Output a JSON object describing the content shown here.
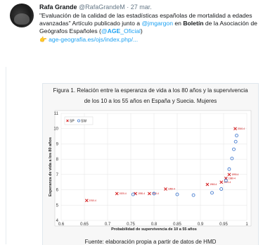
{
  "tweet": {
    "author_name": "Rafa Grande",
    "author_handle": "@RafaGrandeM",
    "separator": " · ",
    "time": "27 mar.",
    "text_line1": "\"Evaluación de la calidad de las estadísticas españolas de mortalidad a edades",
    "text_line2_a": "avanzadas\" Artículo publicado junto a ",
    "mention1": "@jmgargon",
    "text_line2_b": " en ",
    "text_line2_bold": "Boletín",
    "text_line2_c": " de la Asociación de",
    "text_line3_a": "Geógrafos Españoles (",
    "mention2_at": "@",
    "mention2_bold": "AGE",
    "mention2_rest": "_Oficial",
    "text_line3_b": ")",
    "pointer_emoji": "👉",
    "url": "age-geografia.es/ojs/index.php/..."
  },
  "figure": {
    "caption_line1": "Figura 1. Relación entre la esperanza de vida a los 80 años y la supervivencia",
    "caption_line2": "de los 10 a los 55 años en España y Suecia. Mujeres",
    "source": "Fuente: elaboración propia a partir de datos de HMD"
  },
  "chart_data": {
    "type": "scatter",
    "xlabel": "Probabilidad de supervivencia de 10 a 55 años",
    "ylabel": "Esperanza de vida a los 80 años",
    "xlim": [
      0.6,
      1.0
    ],
    "ylim": [
      4,
      11
    ],
    "x_ticks": [
      "0.6",
      "0.65",
      "0.7",
      "0.75",
      "0.8",
      "0.85",
      "0.9",
      "0.95",
      "1"
    ],
    "y_ticks": [
      "4",
      "5",
      "6",
      "7",
      "8",
      "9",
      "10",
      "11"
    ],
    "legend": [
      "SP",
      "SW"
    ],
    "legend_position": "top-left",
    "colors": {
      "SP": "#d62728",
      "SW": "#4a7fd0"
    },
    "series": [
      {
        "name": "SP",
        "marker": "x",
        "points": [
          {
            "x": 0.655,
            "y": 5.3,
            "label": "1910-4"
          },
          {
            "x": 0.72,
            "y": 5.75,
            "label": "1920-4"
          },
          {
            "x": 0.76,
            "y": 5.75,
            "label": "1930-4"
          },
          {
            "x": 0.79,
            "y": 5.75,
            "label": "1940-4"
          },
          {
            "x": 0.825,
            "y": 6.05,
            "label": "1950-4"
          },
          {
            "x": 0.915,
            "y": 6.35,
            "label": "1960-4"
          },
          {
            "x": 0.945,
            "y": 6.5,
            "label": "1970-4"
          },
          {
            "x": 0.955,
            "y": 6.75,
            "label": "1980-4"
          },
          {
            "x": 0.962,
            "y": 7.0,
            "label": "1990-4"
          },
          {
            "x": 0.975,
            "y": 10.0,
            "label": "2010-4"
          }
        ]
      },
      {
        "name": "SW",
        "marker": "o",
        "points": [
          {
            "x": 0.755,
            "y": 5.7
          },
          {
            "x": 0.8,
            "y": 5.75
          },
          {
            "x": 0.85,
            "y": 5.7
          },
          {
            "x": 0.885,
            "y": 5.65
          },
          {
            "x": 0.925,
            "y": 5.8
          },
          {
            "x": 0.945,
            "y": 6.05
          },
          {
            "x": 0.955,
            "y": 6.6
          },
          {
            "x": 0.962,
            "y": 7.35
          },
          {
            "x": 0.968,
            "y": 8.05
          },
          {
            "x": 0.972,
            "y": 8.65
          },
          {
            "x": 0.976,
            "y": 9.15
          },
          {
            "x": 0.978,
            "y": 9.55
          }
        ]
      }
    ]
  }
}
